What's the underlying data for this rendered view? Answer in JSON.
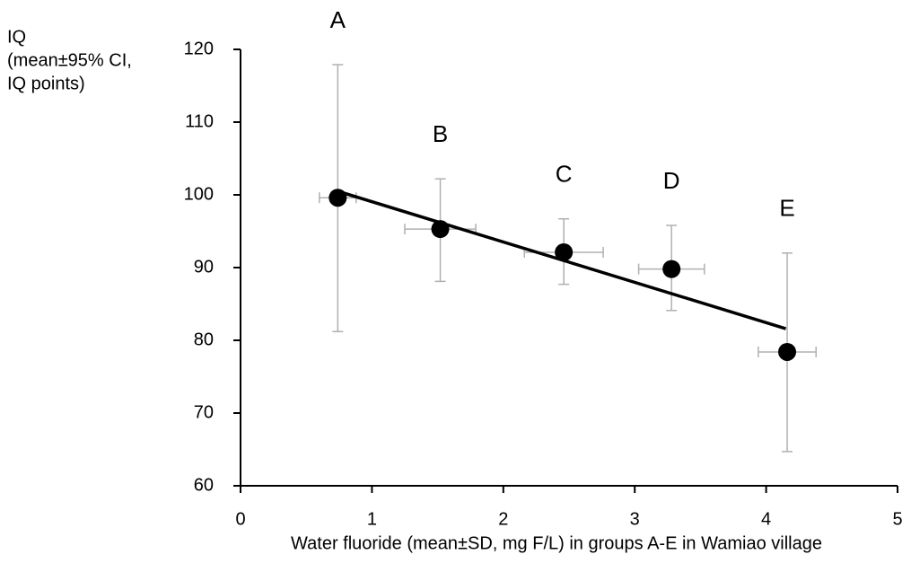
{
  "chart_data": {
    "type": "scatter",
    "x_label": "Water fluoride (mean±SD, mg F/L) in groups A-E in Wamiao village",
    "y_label": [
      "IQ",
      "(mean±95% CI,",
      "IQ points)"
    ],
    "point_labels": [
      "A",
      "B",
      "C",
      "D",
      "E"
    ],
    "x": [
      0.74,
      1.52,
      2.46,
      3.28,
      4.16
    ],
    "x_sd": [
      0.14,
      0.27,
      0.3,
      0.25,
      0.22
    ],
    "values": [
      99.6,
      95.3,
      92.1,
      89.8,
      78.4
    ],
    "y_lower": [
      81.2,
      88.1,
      87.7,
      84.1,
      64.7
    ],
    "y_upper": [
      117.9,
      102.2,
      96.7,
      95.8,
      92.0
    ],
    "trend_line": {
      "x": [
        0.74,
        4.15
      ],
      "y": [
        100.5,
        81.6
      ]
    },
    "color": "#000000",
    "error_color": "#b0b0b0",
    "xlim": [
      0,
      5
    ],
    "xticks": [
      0,
      1,
      2,
      3,
      4,
      5
    ],
    "ylim": [
      60,
      120
    ],
    "yticks": [
      60,
      70,
      80,
      90,
      100,
      110,
      120
    ]
  }
}
